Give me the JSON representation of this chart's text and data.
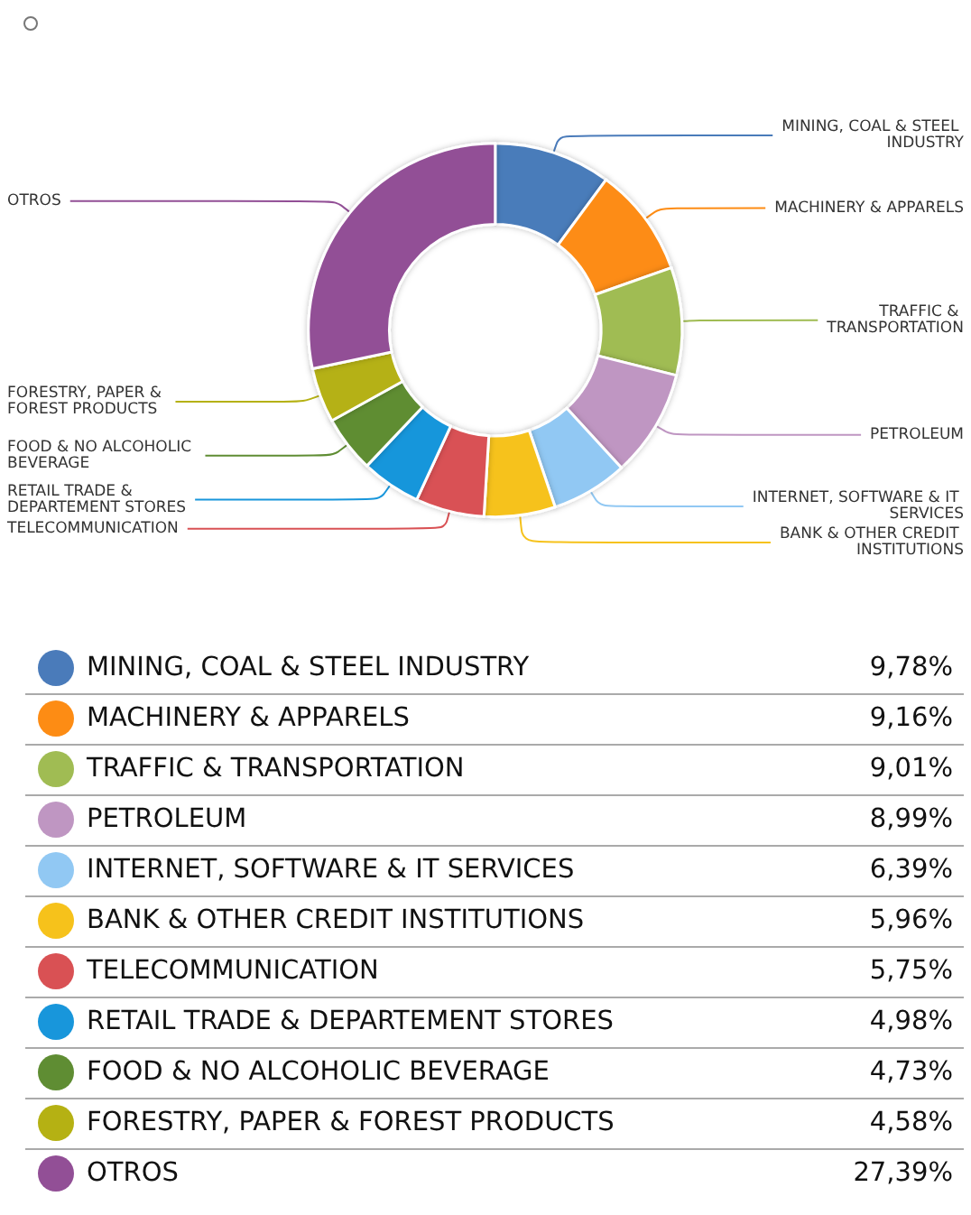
{
  "chart_data": {
    "type": "donut",
    "legend": "bottom",
    "categories": [
      "MINING, COAL & STEEL INDUSTRY",
      "MACHINERY & APPARELS",
      "TRAFFIC & TRANSPORTATION",
      "PETROLEUM",
      "INTERNET, SOFTWARE & IT SERVICES",
      "BANK & OTHER CREDIT INSTITUTIONS",
      "TELECOMMUNICATION",
      "RETAIL TRADE & DEPARTEMENT STORES",
      "FOOD & NO ALCOHOLIC BEVERAGE",
      "FORESTRY, PAPER & FOREST PRODUCTS",
      "OTROS"
    ],
    "values": [
      9.78,
      9.16,
      9.01,
      8.99,
      6.39,
      5.96,
      5.75,
      4.98,
      4.73,
      4.58,
      27.39
    ],
    "value_labels": [
      "9,78%",
      "9,16%",
      "9,01%",
      "8,99%",
      "6,39%",
      "5,96%",
      "5,75%",
      "4,98%",
      "4,73%",
      "4,58%",
      "27,39%"
    ],
    "colors": [
      "#4a7bba",
      "#fd8c14",
      "#a0bc53",
      "#bf96c2",
      "#91c8f3",
      "#f6c21b",
      "#d95154",
      "#1896db",
      "#5f8d33",
      "#b5b113",
      "#924f96"
    ]
  }
}
